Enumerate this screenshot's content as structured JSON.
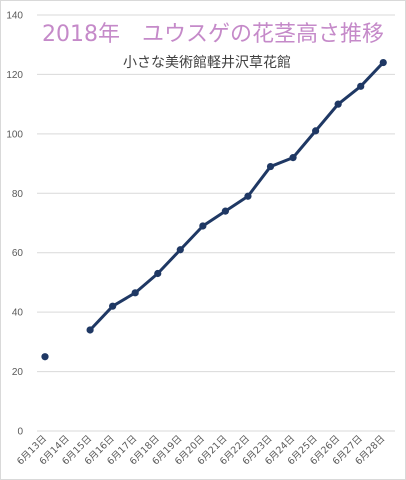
{
  "chart_data": {
    "type": "line",
    "title": "2018年　ユウスゲの花茎高さ推移",
    "subtitle": "小さな美術館軽井沢草花館",
    "xlabel": "",
    "ylabel": "",
    "categories": [
      "6月13日",
      "6月14日",
      "6月15日",
      "6月16日",
      "6月17日",
      "6月18日",
      "6月19日",
      "6月20日",
      "6月21日",
      "6月22日",
      "6月23日",
      "6月24日",
      "6月25日",
      "6月26日",
      "6月27日",
      "6月28日"
    ],
    "series": [
      {
        "values": [
          25,
          null,
          34,
          42,
          46.5,
          53,
          61,
          69,
          74,
          79,
          89,
          92,
          101,
          110,
          116,
          124
        ]
      }
    ],
    "ylim": [
      0,
      140
    ],
    "yticks": [
      0,
      20,
      40,
      60,
      80,
      100,
      120,
      140
    ],
    "grid": true,
    "legend": "none",
    "colors": {
      "line": "#1f3864",
      "title": "#c58ac9",
      "grid": "#d9d9d9"
    }
  }
}
